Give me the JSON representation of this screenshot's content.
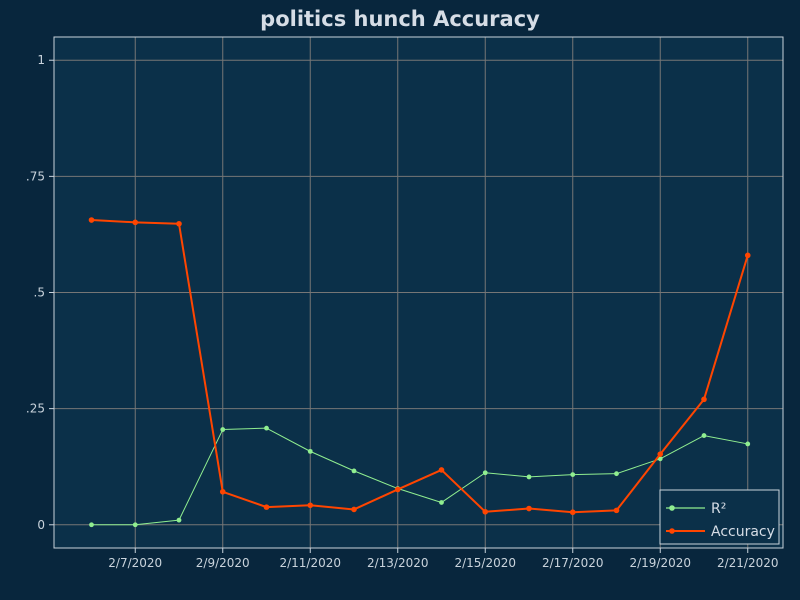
{
  "chart_data": {
    "type": "line",
    "title": "politics hunch Accuracy",
    "xlabel": "",
    "ylabel": "",
    "x": [
      "2/6/2020",
      "2/7/2020",
      "2/8/2020",
      "2/9/2020",
      "2/10/2020",
      "2/11/2020",
      "2/12/2020",
      "2/13/2020",
      "2/14/2020",
      "2/15/2020",
      "2/16/2020",
      "2/17/2020",
      "2/18/2020",
      "2/19/2020",
      "2/20/2020",
      "2/21/2020"
    ],
    "x_ticks": [
      "2/7/2020",
      "2/9/2020",
      "2/11/2020",
      "2/13/2020",
      "2/15/2020",
      "2/17/2020",
      "2/19/2020",
      "2/21/2020"
    ],
    "y_ticks": [
      {
        "value": 0,
        "label": "0"
      },
      {
        "value": 0.25,
        "label": ".25"
      },
      {
        "value": 0.5,
        "label": ".5"
      },
      {
        "value": 0.75,
        "label": ".75"
      },
      {
        "value": 1,
        "label": "1"
      }
    ],
    "ylim": [
      -0.05,
      1.05
    ],
    "grid": true,
    "legend_position": "bottom-right",
    "series": [
      {
        "name": "R²",
        "color": "#90ee90",
        "values": [
          0.0,
          0.0,
          0.01,
          0.205,
          0.208,
          0.158,
          0.116,
          0.078,
          0.048,
          0.112,
          0.103,
          0.108,
          0.11,
          0.142,
          0.192,
          0.174
        ]
      },
      {
        "name": "Accuracy",
        "color": "#ff4500",
        "values": [
          0.656,
          0.651,
          0.648,
          0.071,
          0.038,
          0.042,
          0.033,
          0.076,
          0.118,
          0.028,
          0.035,
          0.027,
          0.031,
          0.152,
          0.27,
          0.58
        ]
      }
    ]
  },
  "colors": {
    "background": "#08263d",
    "plot_background": "#0b3049",
    "grid": "#767676",
    "frame": "#c9d3dc"
  }
}
